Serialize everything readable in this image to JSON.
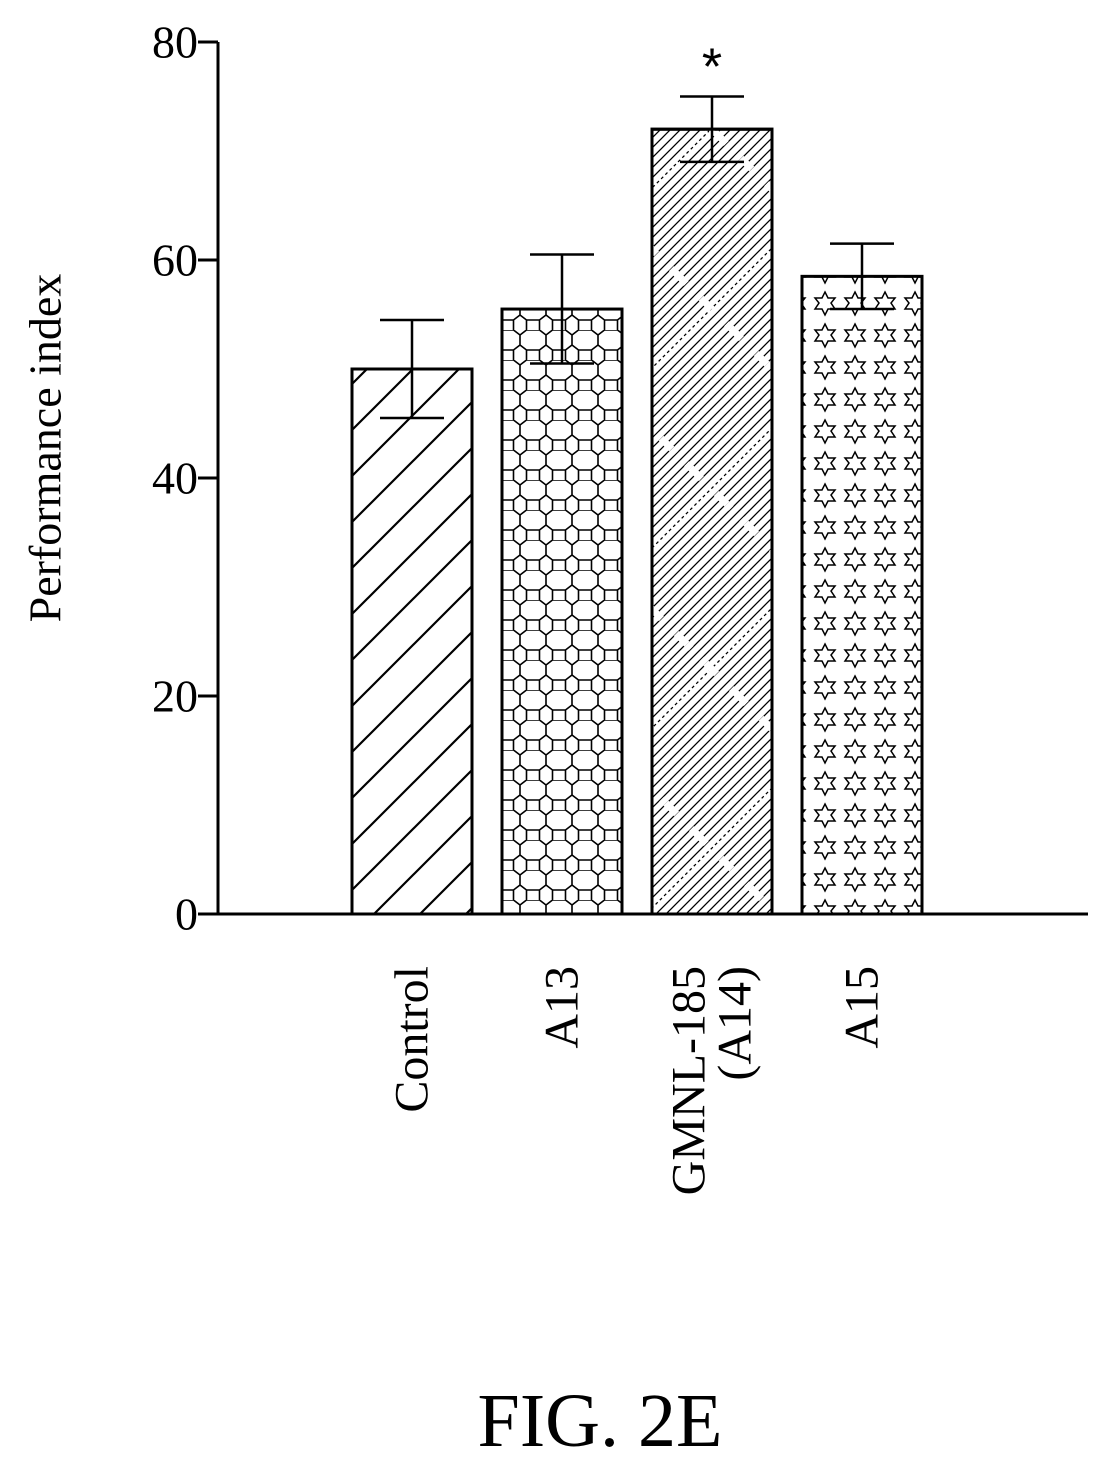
{
  "chart_data": {
    "type": "bar",
    "categories": [
      [
        "Control"
      ],
      [
        "A13"
      ],
      [
        "GMNL-185",
        "(A14)"
      ],
      [
        "A15"
      ]
    ],
    "values": [
      50,
      55.5,
      72,
      58.5
    ],
    "errors": [
      4.5,
      5,
      3,
      3
    ],
    "significance": [
      "",
      "",
      "*",
      ""
    ],
    "patterns": [
      "diagonal-hatch",
      "hexagon",
      "fine-hatch-crosshatch",
      "stars"
    ],
    "title": "",
    "xlabel": "",
    "ylabel": "Performance index",
    "ylim": [
      0,
      80
    ],
    "yticks": [
      0,
      20,
      40,
      60,
      80
    ],
    "grid": false,
    "legend": "none"
  },
  "figure": {
    "caption": "FIG. 2E"
  }
}
